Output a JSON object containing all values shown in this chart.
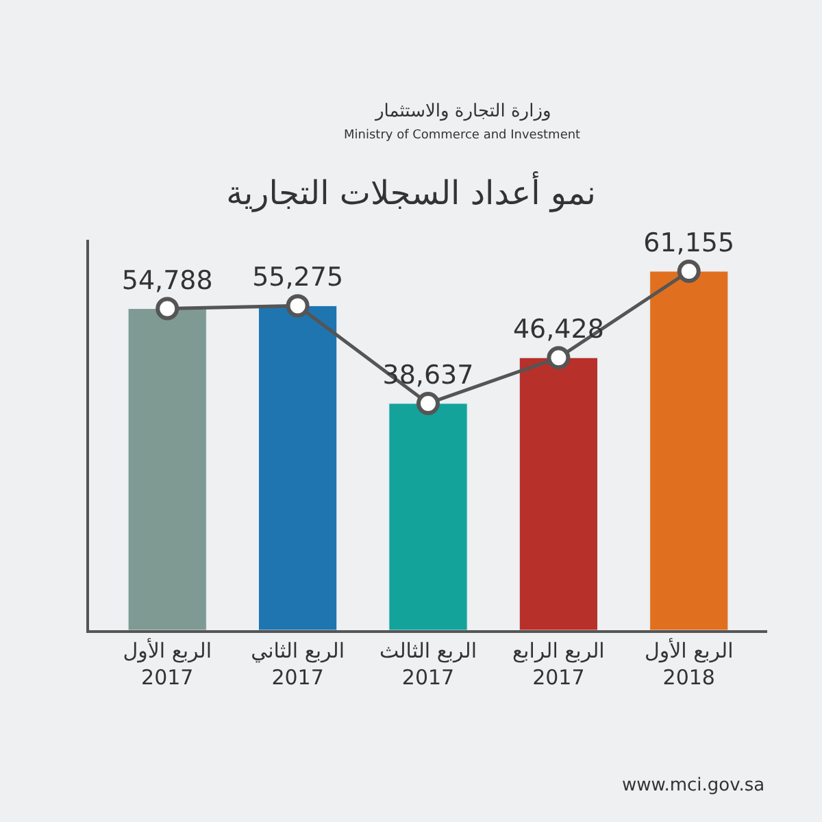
{
  "chart_data": {
    "type": "bar",
    "title": "نمو أعداد السجلات التجارية",
    "annotations": [
      "وزارة التجارة والاستثمار",
      "Ministry of Commerce and Investment",
      "www.mci.gov.sa"
    ],
    "categories": [
      "الربع الأول\n2017",
      "الربع الثاني\n2017",
      "الربع الثالث\n2017",
      "الربع الرابع\n2017",
      "الربع الأول\n2018"
    ],
    "series": [
      {
        "colors": [
          "#7f9a93",
          "#1f75b0",
          "#13a39b",
          "#b8302a",
          "#e0701f"
        ],
        "values": [
          54788,
          55275,
          38637,
          46428,
          61155
        ]
      },
      {
        "type": "line",
        "color": "#555555",
        "values": [
          54788,
          55275,
          38637,
          46428,
          61155
        ],
        "value_labels": [
          "54,788",
          "55,275",
          "38,637",
          "46,428",
          "61,155"
        ]
      }
    ],
    "marker": "circle",
    "tick_labels": "x"
  }
}
